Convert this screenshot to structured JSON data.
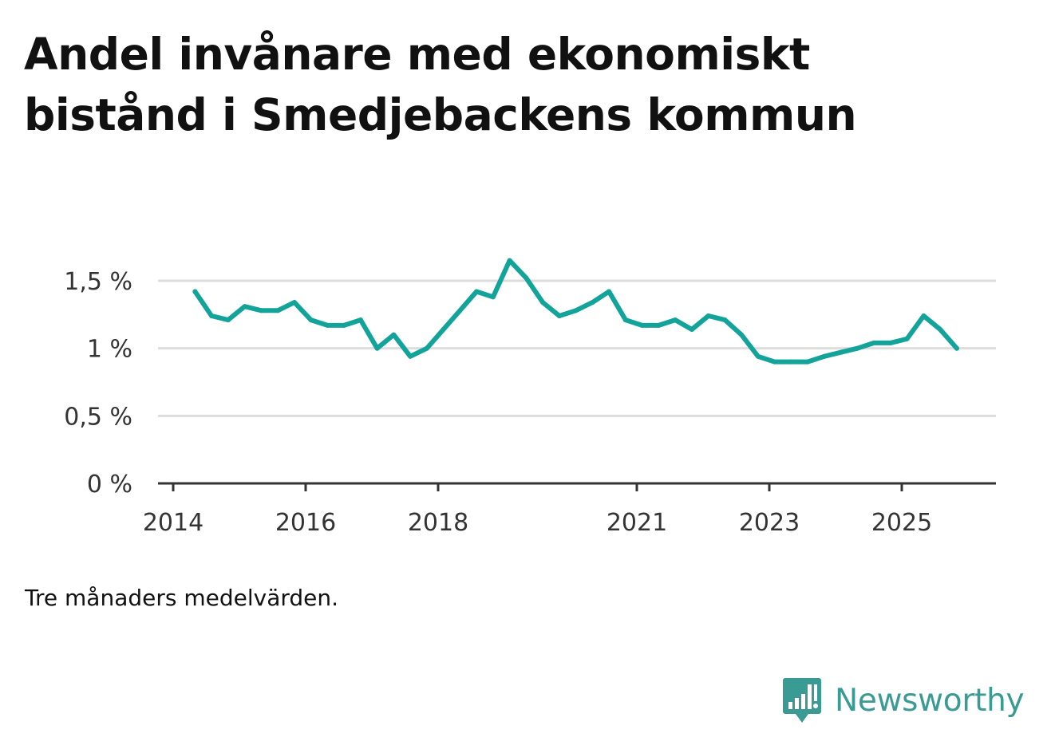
{
  "title_lines": [
    "Andel invånare med ekonomiskt",
    "bistånd i Smedjebackens kommun"
  ],
  "note": "Tre månaders medelvärden.",
  "brand": {
    "name": "Newsworthy",
    "icon": "newsworthy-logo-icon",
    "color": "#3a9a94"
  },
  "colors": {
    "line": "#12a39a",
    "grid": "#dddddd",
    "axis": "#333333",
    "tick_text": "#333333"
  },
  "chart_data": {
    "type": "line",
    "title": "Andel invånare med ekonomiskt bistånd i Smedjebackens kommun",
    "xlabel": "",
    "ylabel": "",
    "ylim": [
      0,
      1.5
    ],
    "xlim": [
      2014.0,
      2026.0
    ],
    "yticks": [
      0,
      0.5,
      1,
      1.5
    ],
    "ytick_labels": [
      "0 %",
      "0,5 %",
      "1 %",
      "1,5 %"
    ],
    "xticks": [
      2014,
      2016,
      2018,
      2021,
      2023,
      2025
    ],
    "xtick_labels": [
      "2014",
      "2016",
      "2018",
      "2021",
      "2023",
      "2025"
    ],
    "grid": true,
    "series": [
      {
        "name": "Andel invånare med ekonomiskt bistånd",
        "x": [
          2014.33,
          2014.58,
          2014.83,
          2015.08,
          2015.33,
          2015.58,
          2015.83,
          2016.08,
          2016.33,
          2016.58,
          2016.83,
          2017.08,
          2017.33,
          2017.58,
          2017.83,
          2018.08,
          2018.33,
          2018.58,
          2018.83,
          2019.08,
          2019.33,
          2019.58,
          2019.83,
          2020.08,
          2020.33,
          2020.58,
          2020.83,
          2021.08,
          2021.33,
          2021.58,
          2021.83,
          2022.08,
          2022.33,
          2022.58,
          2022.83,
          2023.08,
          2023.33,
          2023.58,
          2023.83,
          2024.08,
          2024.33,
          2024.58,
          2024.83,
          2025.08,
          2025.33,
          2025.58,
          2025.83
        ],
        "values": [
          1.42,
          1.24,
          1.21,
          1.31,
          1.28,
          1.28,
          1.34,
          1.21,
          1.17,
          1.17,
          1.21,
          1.0,
          1.1,
          0.94,
          1.0,
          1.14,
          1.28,
          1.42,
          1.38,
          1.65,
          1.52,
          1.34,
          1.24,
          1.28,
          1.34,
          1.42,
          1.21,
          1.17,
          1.17,
          1.21,
          1.14,
          1.24,
          1.21,
          1.1,
          0.94,
          0.9,
          0.9,
          0.9,
          0.94,
          0.97,
          1.0,
          1.04,
          1.04,
          1.07,
          1.24,
          1.14,
          1.0
        ]
      }
    ]
  }
}
